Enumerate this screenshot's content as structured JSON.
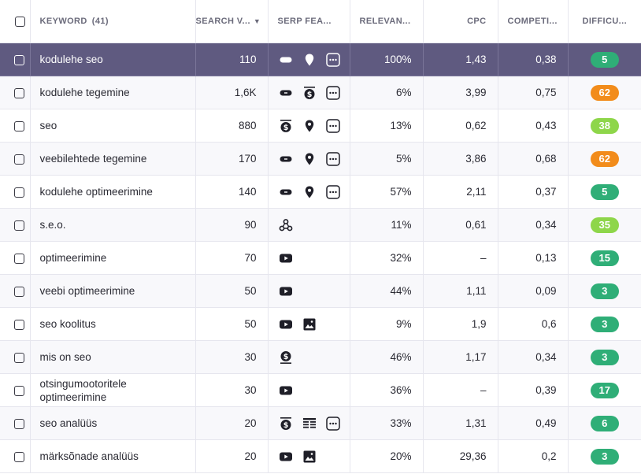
{
  "header": {
    "keyword_label": "KEYWORD",
    "keyword_count": "(41)",
    "search_volume": "SEARCH V...",
    "serp_features": "SERP FEA...",
    "relevance": "RELEVAN...",
    "cpc": "CPC",
    "competition": "COMPETI...",
    "difficulty": "DIFFICU..."
  },
  "colors": {
    "selected_row": "#5f5a80",
    "badge_dark_green": "#2fae77",
    "badge_light_green": "#8ed64a",
    "badge_orange": "#f28c1b"
  },
  "rows": [
    {
      "keyword": "kodulehe seo",
      "volume": "110",
      "serp": [
        "link-icon",
        "location-pin-icon",
        "more-icon"
      ],
      "relevance": "100%",
      "cpc": "1,43",
      "competition": "0,38",
      "difficulty": "5",
      "level": "green",
      "selected": true
    },
    {
      "keyword": "kodulehe tegemine",
      "volume": "1,6K",
      "serp": [
        "link-icon",
        "paid-ad-top-icon",
        "more-icon"
      ],
      "relevance": "6%",
      "cpc": "3,99",
      "competition": "0,75",
      "difficulty": "62",
      "level": "orange"
    },
    {
      "keyword": "seo",
      "volume": "880",
      "serp": [
        "paid-ad-top-icon",
        "location-pin-icon",
        "more-icon"
      ],
      "relevance": "13%",
      "cpc": "0,62",
      "competition": "0,43",
      "difficulty": "38",
      "level": "lightgreen"
    },
    {
      "keyword": "veebilehtede tegemine",
      "volume": "170",
      "serp": [
        "link-icon",
        "location-pin-icon",
        "more-icon"
      ],
      "relevance": "5%",
      "cpc": "3,86",
      "competition": "0,68",
      "difficulty": "62",
      "level": "orange"
    },
    {
      "keyword": "kodulehe optimeerimine",
      "volume": "140",
      "serp": [
        "link-icon",
        "location-pin-icon",
        "more-icon"
      ],
      "relevance": "57%",
      "cpc": "2,11",
      "competition": "0,37",
      "difficulty": "5",
      "level": "green"
    },
    {
      "keyword": "s.e.o.",
      "volume": "90",
      "serp": [
        "knowledge-graph-icon"
      ],
      "relevance": "11%",
      "cpc": "0,61",
      "competition": "0,34",
      "difficulty": "35",
      "level": "lightgreen"
    },
    {
      "keyword": "optimeerimine",
      "volume": "70",
      "serp": [
        "video-icon"
      ],
      "relevance": "32%",
      "cpc": "–",
      "competition": "0,13",
      "difficulty": "15",
      "level": "green"
    },
    {
      "keyword": "veebi optimeerimine",
      "volume": "50",
      "serp": [
        "video-icon"
      ],
      "relevance": "44%",
      "cpc": "1,11",
      "competition": "0,09",
      "difficulty": "3",
      "level": "green"
    },
    {
      "keyword": "seo koolitus",
      "volume": "50",
      "serp": [
        "video-icon",
        "image-icon"
      ],
      "relevance": "9%",
      "cpc": "1,9",
      "competition": "0,6",
      "difficulty": "3",
      "level": "green"
    },
    {
      "keyword": "mis on seo",
      "volume": "30",
      "serp": [
        "paid-ad-bottom-icon"
      ],
      "relevance": "46%",
      "cpc": "1,17",
      "competition": "0,34",
      "difficulty": "3",
      "level": "green"
    },
    {
      "keyword": "otsingumootoritele optimeerimine",
      "volume": "30",
      "serp": [
        "video-icon"
      ],
      "relevance": "36%",
      "cpc": "–",
      "competition": "0,39",
      "difficulty": "17",
      "level": "green"
    },
    {
      "keyword": "seo analüüs",
      "volume": "20",
      "serp": [
        "paid-ad-top-icon",
        "table-icon",
        "more-icon"
      ],
      "relevance": "33%",
      "cpc": "1,31",
      "competition": "0,49",
      "difficulty": "6",
      "level": "green"
    },
    {
      "keyword": "märksõnade analüüs",
      "volume": "20",
      "serp": [
        "video-icon",
        "image-icon"
      ],
      "relevance": "20%",
      "cpc": "29,36",
      "competition": "0,2",
      "difficulty": "3",
      "level": "green"
    }
  ]
}
